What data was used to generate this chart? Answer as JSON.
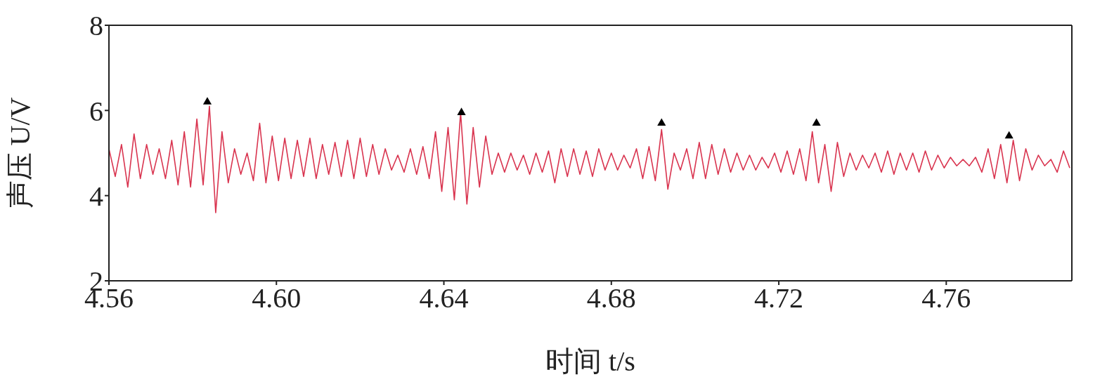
{
  "chart_data": {
    "type": "line",
    "xlabel": "时间 t/s",
    "ylabel": "声压 U/V",
    "xlim": [
      4.56,
      4.79
    ],
    "xticks": [
      4.56,
      {
        "value": 4.6,
        "label": "4.60"
      },
      4.64,
      4.68,
      4.72,
      4.76
    ],
    "ylim": [
      2,
      8
    ],
    "yticks": [
      2,
      4,
      6,
      8
    ],
    "grid": false,
    "legend": false,
    "series": [
      {
        "color": "#d9344f",
        "marker": "none",
        "x": [
          4.56,
          4.5615,
          4.563,
          4.5645,
          4.566,
          4.5675,
          4.569,
          4.5705,
          4.572,
          4.5735,
          4.575,
          4.5765,
          4.578,
          4.5795,
          4.581,
          4.5825,
          4.584,
          4.5855,
          4.587,
          4.5885,
          4.59,
          4.5915,
          4.593,
          4.5945,
          4.596,
          4.5975,
          4.599,
          4.6005,
          4.602,
          4.6035,
          4.605,
          4.6065,
          4.608,
          4.6095,
          4.611,
          4.6125,
          4.614,
          4.6155,
          4.617,
          4.6185,
          4.62,
          4.6215,
          4.623,
          4.6245,
          4.626,
          4.6275,
          4.629,
          4.6305,
          4.632,
          4.6335,
          4.635,
          4.6365,
          4.638,
          4.6395,
          4.641,
          4.6425,
          4.644,
          4.6455,
          4.647,
          4.6485,
          4.65,
          4.6515,
          4.653,
          4.6545,
          4.656,
          4.6575,
          4.659,
          4.6605,
          4.662,
          4.6635,
          4.665,
          4.6665,
          4.668,
          4.6695,
          4.671,
          4.6725,
          4.674,
          4.6755,
          4.677,
          4.6785,
          4.68,
          4.6815,
          4.683,
          4.6845,
          4.686,
          4.6875,
          4.689,
          4.6905,
          4.692,
          4.6935,
          4.695,
          4.6965,
          4.698,
          4.6995,
          4.701,
          4.7025,
          4.704,
          4.7055,
          4.707,
          4.7085,
          4.71,
          4.7115,
          4.713,
          4.7145,
          4.716,
          4.7175,
          4.719,
          4.7205,
          4.722,
          4.7235,
          4.725,
          4.7265,
          4.728,
          4.7295,
          4.731,
          4.7325,
          4.734,
          4.7355,
          4.737,
          4.7385,
          4.74,
          4.7415,
          4.743,
          4.7445,
          4.746,
          4.7475,
          4.749,
          4.7505,
          4.752,
          4.7535,
          4.755,
          4.7565,
          4.758,
          4.7595,
          4.761,
          4.7625,
          4.764,
          4.7655,
          4.767,
          4.7685,
          4.77,
          4.7715,
          4.773,
          4.7745,
          4.776,
          4.7775,
          4.779,
          4.7805,
          4.782,
          4.7835,
          4.785,
          4.7865,
          4.788,
          4.7895
        ],
        "values": [
          5.1,
          4.45,
          5.2,
          4.2,
          5.45,
          4.4,
          5.2,
          4.5,
          5.1,
          4.4,
          5.3,
          4.25,
          5.5,
          4.2,
          5.8,
          4.25,
          6.1,
          3.6,
          5.5,
          4.3,
          5.1,
          4.5,
          5.0,
          4.35,
          5.7,
          4.3,
          5.4,
          4.35,
          5.35,
          4.4,
          5.3,
          4.45,
          5.35,
          4.4,
          5.2,
          4.5,
          5.25,
          4.45,
          5.3,
          4.4,
          5.35,
          4.45,
          5.2,
          4.5,
          5.1,
          4.6,
          4.95,
          4.55,
          5.1,
          4.5,
          5.15,
          4.4,
          5.5,
          4.1,
          5.6,
          3.9,
          5.95,
          3.8,
          5.6,
          4.2,
          5.4,
          4.5,
          5.0,
          4.55,
          5.0,
          4.6,
          4.95,
          4.5,
          5.0,
          4.55,
          5.05,
          4.3,
          5.1,
          4.45,
          5.1,
          4.5,
          5.05,
          4.45,
          5.1,
          4.6,
          5.0,
          4.6,
          4.95,
          4.65,
          5.1,
          4.4,
          5.15,
          4.35,
          5.55,
          4.15,
          5.0,
          4.6,
          5.1,
          4.4,
          5.25,
          4.4,
          5.2,
          4.5,
          5.1,
          4.55,
          5.0,
          4.6,
          4.95,
          4.6,
          4.9,
          4.65,
          5.0,
          4.55,
          5.05,
          4.5,
          5.1,
          4.35,
          5.5,
          4.3,
          5.2,
          4.1,
          5.25,
          4.45,
          5.0,
          4.6,
          4.95,
          4.65,
          5.0,
          4.55,
          5.05,
          4.5,
          5.0,
          4.6,
          5.0,
          4.55,
          5.05,
          4.6,
          4.95,
          4.65,
          4.9,
          4.7,
          4.85,
          4.7,
          4.9,
          4.55,
          5.1,
          4.4,
          5.2,
          4.3,
          5.3,
          4.35,
          5.1,
          4.6,
          4.95,
          4.7,
          4.85,
          4.55,
          5.05,
          4.65
        ]
      },
      {
        "type": "scatter",
        "color": "#000000",
        "marker": "triangle",
        "x": [
          4.5835,
          4.6442,
          4.692,
          4.729,
          4.775
        ],
        "values": [
          6.2,
          5.95,
          5.7,
          5.7,
          5.4
        ]
      }
    ]
  }
}
